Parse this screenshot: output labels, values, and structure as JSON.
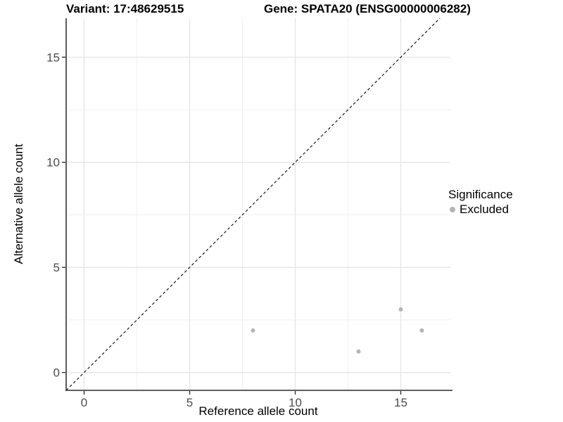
{
  "header": {
    "variant_title": "Variant: 17:48629515",
    "gene_title": "Gene: SPATA20 (ENSG00000006282)"
  },
  "chart_data": {
    "type": "scatter",
    "title_left": "Variant: 17:48629515",
    "title_right": "Gene: SPATA20 (ENSG00000006282)",
    "xlabel": "Reference allele count",
    "ylabel": "Alternative allele count",
    "xlim": [
      -0.85,
      17.35
    ],
    "ylim": [
      -0.85,
      16.85
    ],
    "x_ticks": [
      0,
      5,
      10,
      15
    ],
    "y_ticks": [
      0,
      5,
      10,
      15
    ],
    "minor_tick_step": 2.5,
    "grid": true,
    "identity_line": {
      "equation": "y = x",
      "style": "dashed",
      "color": "#1a1a1a"
    },
    "series": [
      {
        "name": "Excluded",
        "color": "#b4b4b4",
        "point_radius": 3,
        "points": [
          [
            8,
            2
          ],
          [
            13,
            1
          ],
          [
            15,
            3
          ],
          [
            16,
            2
          ]
        ]
      }
    ],
    "legend": {
      "title": "Significance",
      "position": "right",
      "items": [
        {
          "label": "Excluded",
          "color": "#b4b4b4"
        }
      ]
    }
  },
  "style": {
    "background": "#ffffff",
    "grid_major_color": "#e3e3e3",
    "grid_minor_color": "#efefef",
    "axis_line_color": "#4a4a4a",
    "tick_mark_color": "#333333",
    "tick_label_color": "#4d4d4d",
    "title_color": "#000000"
  }
}
